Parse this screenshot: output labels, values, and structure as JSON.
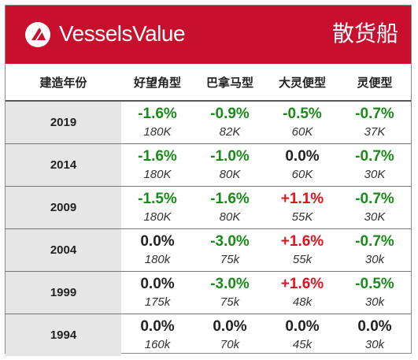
{
  "brand": {
    "name": "VesselsValue",
    "title": "散货船"
  },
  "colors": {
    "header_bg": "#c8102e",
    "negative": "#1a8a1a",
    "positive": "#e0141e",
    "neutral": "#222222"
  },
  "table": {
    "headers": [
      "建造年份",
      "好望角型",
      "巴拿马型",
      "大灵便型",
      "灵便型"
    ],
    "rows": [
      {
        "year": "2019",
        "cells": [
          {
            "pct": "-1.6%",
            "sub": "180K",
            "tone": "green"
          },
          {
            "pct": "-0.9%",
            "sub": "82K",
            "tone": "green"
          },
          {
            "pct": "-0.5%",
            "sub": "60K",
            "tone": "green"
          },
          {
            "pct": "-0.7%",
            "sub": "37K",
            "tone": "green"
          }
        ]
      },
      {
        "year": "2014",
        "cells": [
          {
            "pct": "-1.6%",
            "sub": "180K",
            "tone": "green"
          },
          {
            "pct": "-1.0%",
            "sub": "80K",
            "tone": "green"
          },
          {
            "pct": "0.0%",
            "sub": "60K",
            "tone": "black"
          },
          {
            "pct": "-0.7%",
            "sub": "30K",
            "tone": "green"
          }
        ]
      },
      {
        "year": "2009",
        "cells": [
          {
            "pct": "-1.5%",
            "sub": "180K",
            "tone": "green"
          },
          {
            "pct": "-1.6%",
            "sub": "80K",
            "tone": "green"
          },
          {
            "pct": "+1.1%",
            "sub": "55K",
            "tone": "red"
          },
          {
            "pct": "-0.7%",
            "sub": "30K",
            "tone": "green"
          }
        ]
      },
      {
        "year": "2004",
        "cells": [
          {
            "pct": "0.0%",
            "sub": "180k",
            "tone": "black"
          },
          {
            "pct": "-3.0%",
            "sub": "75k",
            "tone": "green"
          },
          {
            "pct": "+1.6%",
            "sub": "55k",
            "tone": "red"
          },
          {
            "pct": "-0.7%",
            "sub": "30k",
            "tone": "green"
          }
        ]
      },
      {
        "year": "1999",
        "cells": [
          {
            "pct": "0.0%",
            "sub": "175k",
            "tone": "black"
          },
          {
            "pct": "-3.0%",
            "sub": "75k",
            "tone": "green"
          },
          {
            "pct": "+1.6%",
            "sub": "48k",
            "tone": "red"
          },
          {
            "pct": "-0.5%",
            "sub": "30k",
            "tone": "green"
          }
        ]
      },
      {
        "year": "1994",
        "cells": [
          {
            "pct": "0.0%",
            "sub": "160k",
            "tone": "black"
          },
          {
            "pct": "0.0%",
            "sub": "70k",
            "tone": "black"
          },
          {
            "pct": "0.0%",
            "sub": "45k",
            "tone": "black"
          },
          {
            "pct": "0.0%",
            "sub": "30k",
            "tone": "black"
          }
        ]
      }
    ]
  }
}
